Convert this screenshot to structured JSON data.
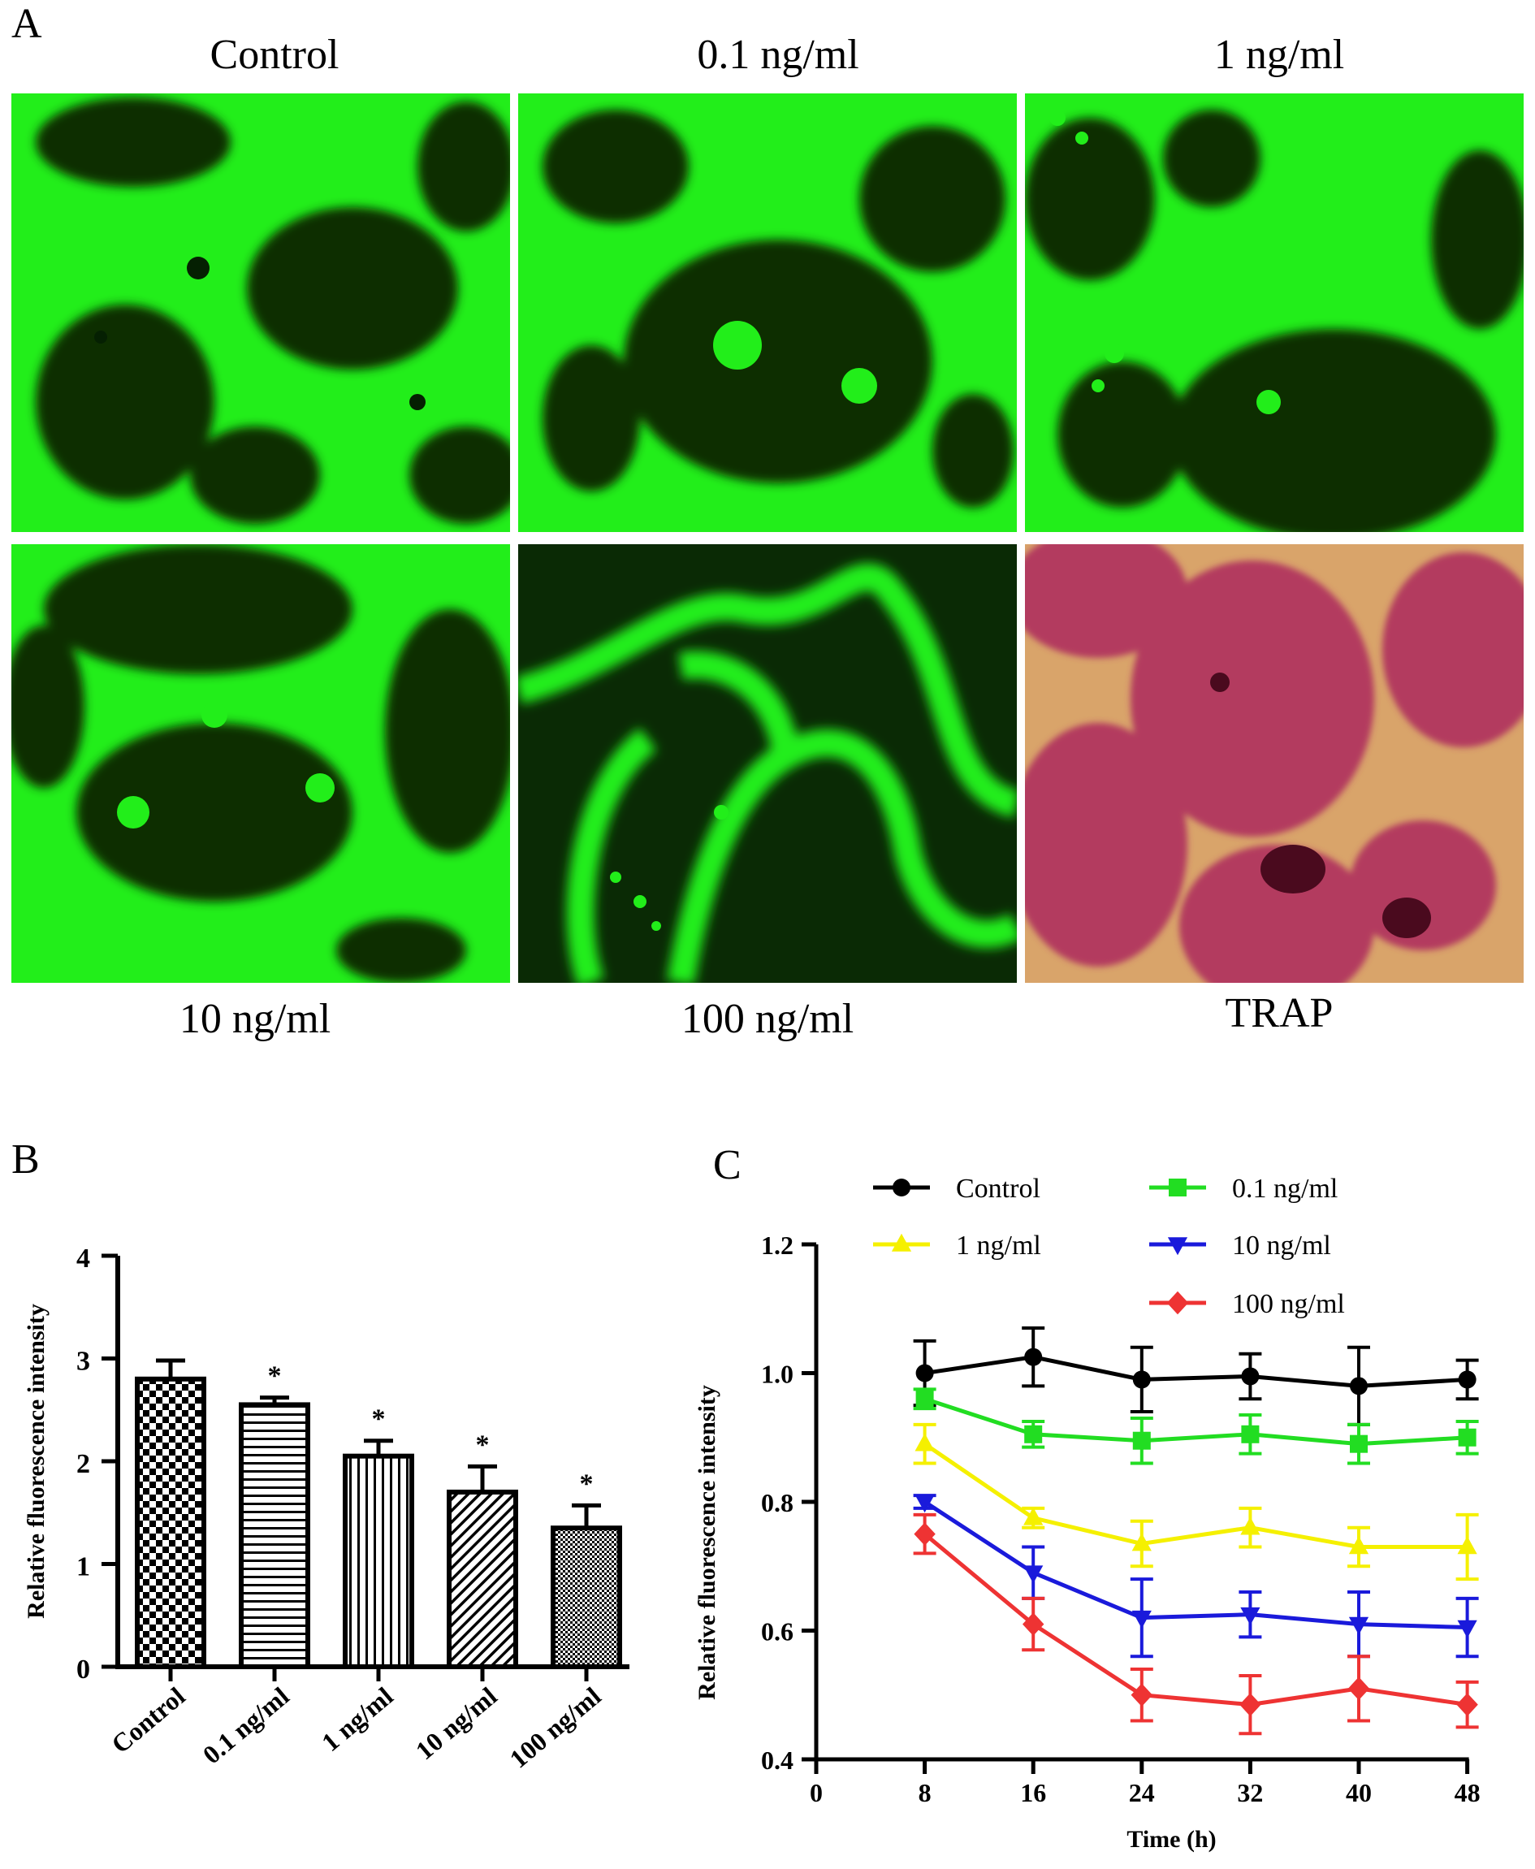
{
  "panel_a": {
    "letter": "A",
    "images": [
      {
        "label": "Control",
        "kind": "fluorescence-green"
      },
      {
        "label": "0.1 ng/ml",
        "kind": "fluorescence-green"
      },
      {
        "label": "1 ng/ml",
        "kind": "fluorescence-green"
      },
      {
        "label": "10 ng/ml",
        "kind": "fluorescence-green"
      },
      {
        "label": "100 ng/ml",
        "kind": "fluorescence-green"
      },
      {
        "label": "TRAP",
        "kind": "brightfield-stain"
      }
    ],
    "colors": {
      "fluor": "#22ee1a",
      "fluor_dark": "#0a3a05",
      "trap": "#b33a5e",
      "trap_bg": "#d9a46a"
    }
  },
  "chart_data": [
    {
      "letter": "B",
      "type": "bar",
      "categories": [
        "Control",
        "0.1 ng/ml",
        "1 ng/ml",
        "10 ng/ml",
        "100 ng/ml"
      ],
      "values": [
        2.8,
        2.55,
        2.05,
        1.7,
        1.35
      ],
      "errors": [
        0.18,
        0.07,
        0.15,
        0.25,
        0.22
      ],
      "significance": [
        "",
        "*",
        "*",
        "*",
        "*"
      ],
      "patterns": [
        "checker",
        "horizontal",
        "vertical",
        "diagonal",
        "dots"
      ],
      "ylabel": "Relative fluorescence intensity",
      "xlabel": "",
      "ylim": [
        0,
        4
      ],
      "yticks": [
        0,
        1,
        2,
        3,
        4
      ],
      "grid": false
    },
    {
      "letter": "C",
      "type": "line",
      "x": [
        8,
        16,
        24,
        32,
        40,
        48
      ],
      "xlabel": "Time (h)",
      "ylabel": "Relative fluorescence intensity",
      "xlim": [
        0,
        50
      ],
      "ylim": [
        0.4,
        1.2
      ],
      "xticks": [
        0,
        8,
        16,
        24,
        32,
        40,
        48
      ],
      "yticks": [
        "0.4",
        "0.6",
        "0.8",
        "1.0",
        "1.2"
      ],
      "legend_position": "top",
      "grid": false,
      "series": [
        {
          "name": "Control",
          "color": "#000000",
          "marker": "circle",
          "values": [
            1.0,
            1.025,
            0.99,
            0.995,
            0.98,
            0.99
          ],
          "errors": [
            0.05,
            0.045,
            0.05,
            0.035,
            0.06,
            0.03
          ]
        },
        {
          "name": "0.1 ng/ml",
          "color": "#22dd22",
          "marker": "square",
          "values": [
            0.96,
            0.905,
            0.895,
            0.905,
            0.89,
            0.9
          ],
          "errors": [
            0.015,
            0.02,
            0.035,
            0.03,
            0.03,
            0.025
          ]
        },
        {
          "name": "1 ng/ml",
          "color": "#f5f000",
          "marker": "triangle-up",
          "values": [
            0.89,
            0.775,
            0.735,
            0.76,
            0.73,
            0.73
          ],
          "errors": [
            0.03,
            0.015,
            0.035,
            0.03,
            0.03,
            0.05
          ]
        },
        {
          "name": "10 ng/ml",
          "color": "#1a1adb",
          "marker": "triangle-down",
          "values": [
            0.8,
            0.69,
            0.62,
            0.625,
            0.61,
            0.605
          ],
          "errors": [
            0.01,
            0.04,
            0.06,
            0.035,
            0.05,
            0.045
          ]
        },
        {
          "name": "100 ng/ml",
          "color": "#ee3333",
          "marker": "diamond",
          "values": [
            0.75,
            0.61,
            0.5,
            0.485,
            0.51,
            0.485
          ],
          "errors": [
            0.03,
            0.04,
            0.04,
            0.045,
            0.05,
            0.035
          ]
        }
      ]
    }
  ]
}
